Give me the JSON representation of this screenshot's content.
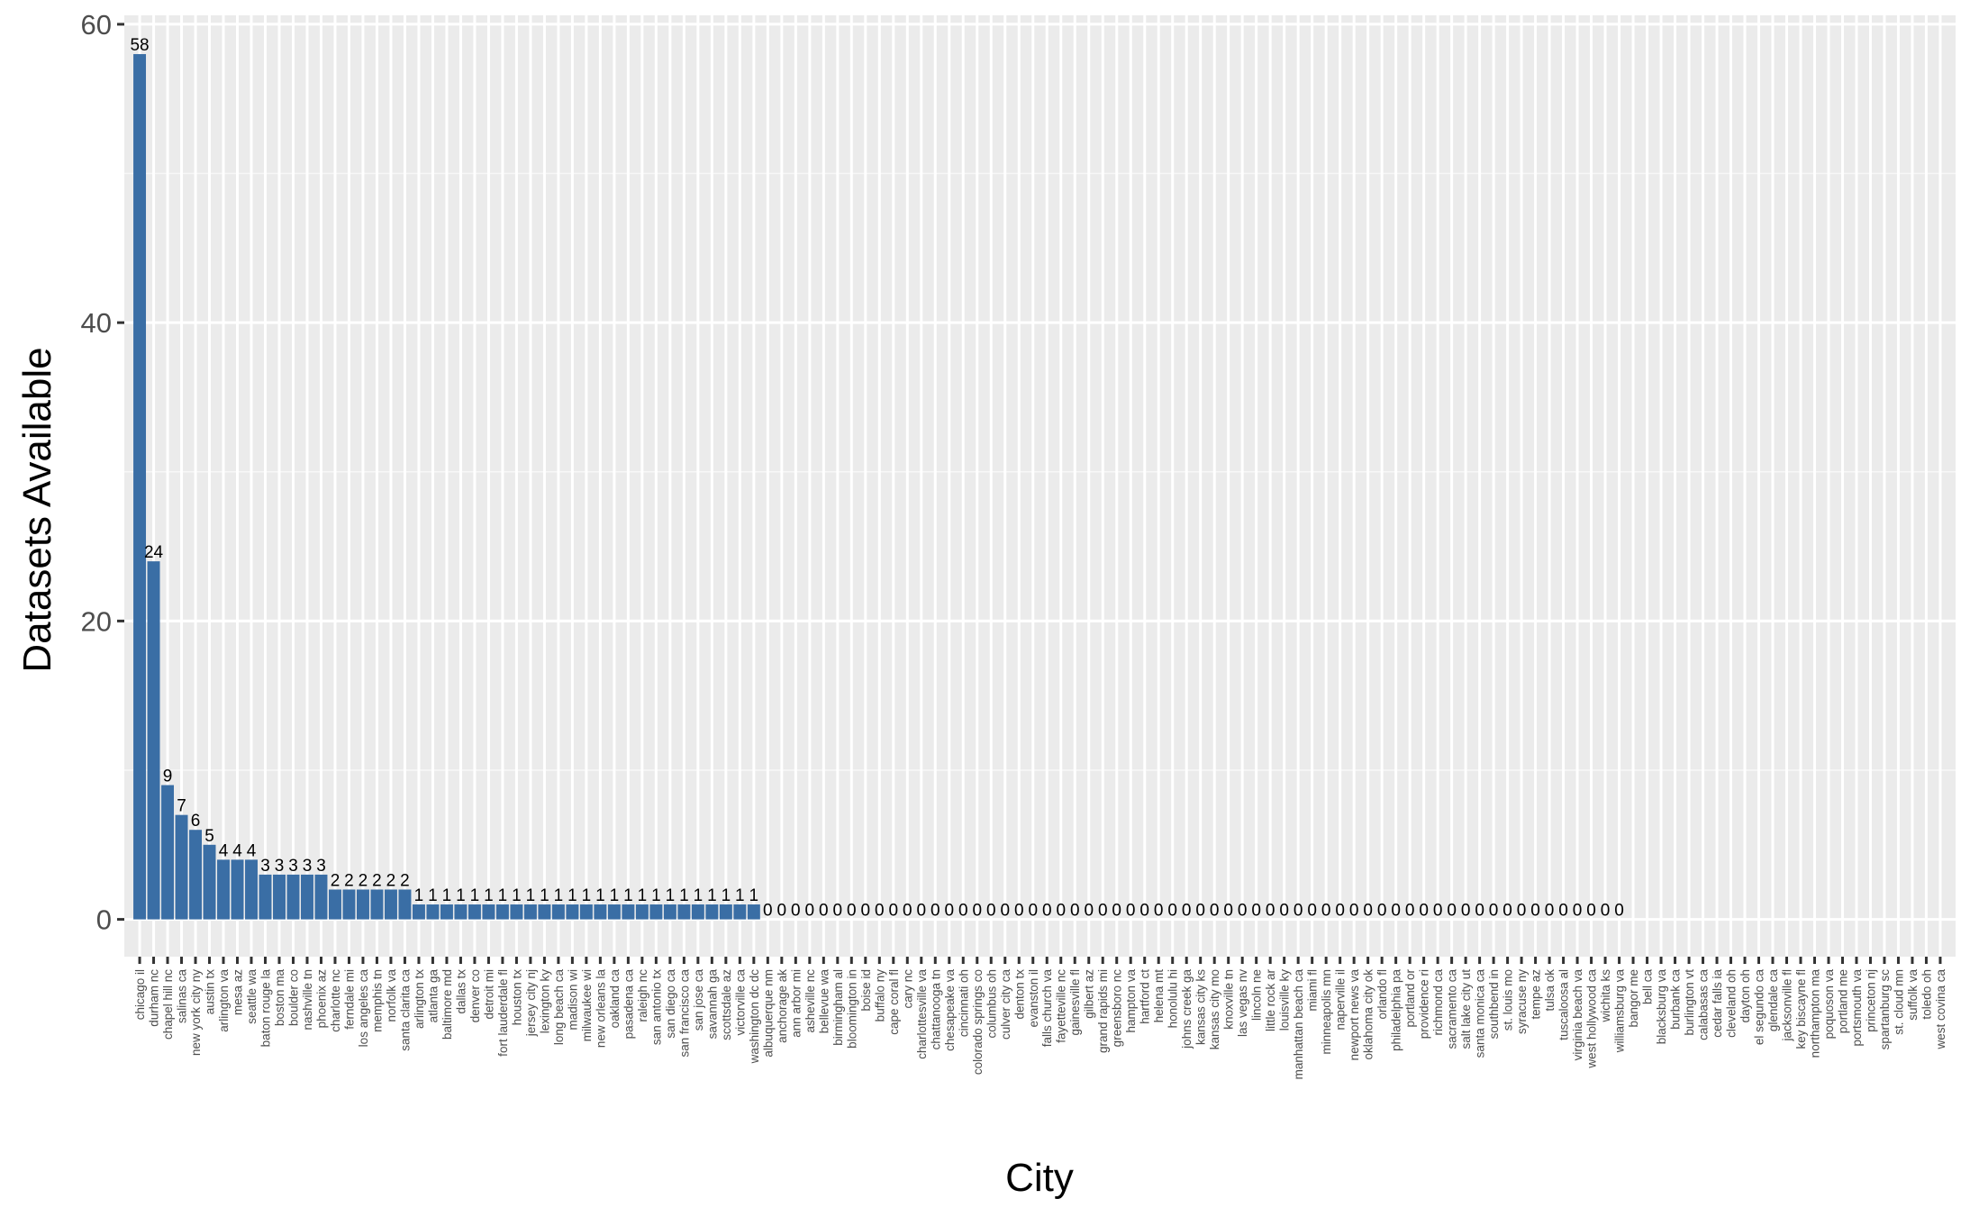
{
  "chart_data": {
    "type": "bar",
    "xlabel": "City",
    "ylabel": "Datasets Available",
    "ylim": [
      -2.5,
      60.6
    ],
    "yticks": [
      0,
      20,
      40,
      60
    ],
    "grid": true,
    "bar_color": "#3a6ea5",
    "panel_background": "#ebebeb",
    "categories": [
      "chicago il",
      "durham nc",
      "chapel hill nc",
      "salinas ca",
      "new york city ny",
      "austin tx",
      "arlington va",
      "mesa az",
      "seattle wa",
      "baton rouge la",
      "boston ma",
      "boulder co",
      "nashville tn",
      "phoenix az",
      "charlotte nc",
      "ferndale mi",
      "los angeles ca",
      "memphis tn",
      "norfolk va",
      "santa clarita ca",
      "arlington tx",
      "atlanta ga",
      "baltimore md",
      "dallas tx",
      "denver co",
      "detroit mi",
      "fort lauderdale fl",
      "houston tx",
      "jersey city nj",
      "lexington ky",
      "long beach ca",
      "madison wi",
      "milwaukee wi",
      "new orleans la",
      "oakland ca",
      "pasadena ca",
      "raleigh nc",
      "san antonio tx",
      "san diego ca",
      "san francisco ca",
      "san jose ca",
      "savannah ga",
      "scottsdale az",
      "victorville ca",
      "washington dc dc",
      "albuquerque nm",
      "anchorage ak",
      "ann arbor mi",
      "asheville nc",
      "bellevue wa",
      "birmingham al",
      "bloomington in",
      "boise id",
      "buffalo ny",
      "cape coral fl",
      "cary nc",
      "charlottesville va",
      "chattanooga tn",
      "chesapeake va",
      "cincinnati oh",
      "colorado springs co",
      "columbus oh",
      "culver city ca",
      "denton tx",
      "evanston il",
      "falls church va",
      "fayetteville nc",
      "gainesville fl",
      "gilbert az",
      "grand rapids mi",
      "greensboro nc",
      "hampton va",
      "hartford ct",
      "helena mt",
      "honolulu hi",
      "johns creek ga",
      "kansas city ks",
      "kansas city mo",
      "knoxville tn",
      "las vegas nv",
      "lincoln ne",
      "little rock ar",
      "louisville ky",
      "manhattan beach ca",
      "miami fl",
      "minneapolis mn",
      "naperville il",
      "newport news va",
      "oklahoma city ok",
      "orlando fl",
      "philadelphia pa",
      "portland or",
      "providence ri",
      "richmond ca",
      "sacramento ca",
      "salt lake city ut",
      "santa monica ca",
      "southbend in",
      "st. louis mo",
      "syracuse ny",
      "tempe az",
      "tulsa ok",
      "tuscaloosa al",
      "virginia beach va",
      "west hollywood ca",
      "wichita ks",
      "williamsburg va",
      "bangor me",
      "bell ca",
      "blacksburg va",
      "burbank ca",
      "burlington vt",
      "calabasas ca",
      "cedar falls ia",
      "cleveland oh",
      "dayton oh",
      "el segundo ca",
      "glendale ca",
      "jacksonville fl",
      "key biscayne fl",
      "northampton ma",
      "poquoson va",
      "portland me",
      "portsmouth va",
      "princeton nj",
      "spartanburg sc",
      "st. cloud mn",
      "suffolk va",
      "toledo oh",
      "west covina ca"
    ],
    "values": [
      58,
      24,
      9,
      7,
      6,
      5,
      4,
      4,
      4,
      3,
      3,
      3,
      3,
      3,
      2,
      2,
      2,
      2,
      2,
      2,
      1,
      1,
      1,
      1,
      1,
      1,
      1,
      1,
      1,
      1,
      1,
      1,
      1,
      1,
      1,
      1,
      1,
      1,
      1,
      1,
      1,
      1,
      1,
      1,
      1,
      0,
      0,
      0,
      0,
      0,
      0,
      0,
      0,
      0,
      0,
      0,
      0,
      0,
      0,
      0,
      0,
      0,
      0,
      0,
      0,
      0,
      0,
      0,
      0,
      0,
      0,
      0,
      0,
      0,
      0,
      0,
      0,
      0,
      0,
      0,
      0,
      0,
      0,
      0,
      0,
      0,
      0,
      0,
      0,
      0,
      0,
      0,
      0,
      0,
      0,
      0,
      0,
      0,
      0,
      0,
      0,
      0,
      0,
      0,
      0,
      0,
      0,
      null,
      null,
      null,
      null,
      null,
      null,
      null,
      null,
      null,
      null,
      null,
      null,
      null,
      null,
      null,
      null,
      null,
      null,
      null,
      null,
      null,
      null,
      null
    ],
    "data_labels": [
      "58",
      "24",
      "9",
      "7",
      "6",
      "5",
      "4",
      "4",
      "4",
      "3",
      "3",
      "3",
      "3",
      "3",
      "2",
      "2",
      "2",
      "2",
      "2",
      "2",
      "1",
      "1",
      "1",
      "1",
      "1",
      "1",
      "1",
      "1",
      "1",
      "1",
      "1",
      "1",
      "1",
      "1",
      "1",
      "1",
      "1",
      "1",
      "1",
      "1",
      "1",
      "1",
      "1",
      "1",
      "1",
      "0",
      "0",
      "0",
      "0",
      "0",
      "0",
      "0",
      "0",
      "0",
      "0",
      "0",
      "0",
      "0",
      "0",
      "0",
      "0",
      "0",
      "0",
      "0",
      "0",
      "0",
      "0",
      "0",
      "0",
      "0",
      "0",
      "0",
      "0",
      "0",
      "0",
      "0",
      "0",
      "0",
      "0",
      "0",
      "0",
      "0",
      "0",
      "0",
      "0",
      "0",
      "0",
      "0",
      "0",
      "0",
      "0",
      "0",
      "0",
      "0",
      "0",
      "0",
      "0",
      "0",
      "0",
      "0",
      "0",
      "0",
      "0",
      "0",
      "0",
      "0",
      "0",
      "",
      "",
      "",
      "",
      "",
      "",
      "",
      "",
      "",
      "",
      "",
      "",
      "",
      "",
      "",
      "",
      "",
      "",
      "",
      "",
      "",
      "",
      ""
    ]
  }
}
